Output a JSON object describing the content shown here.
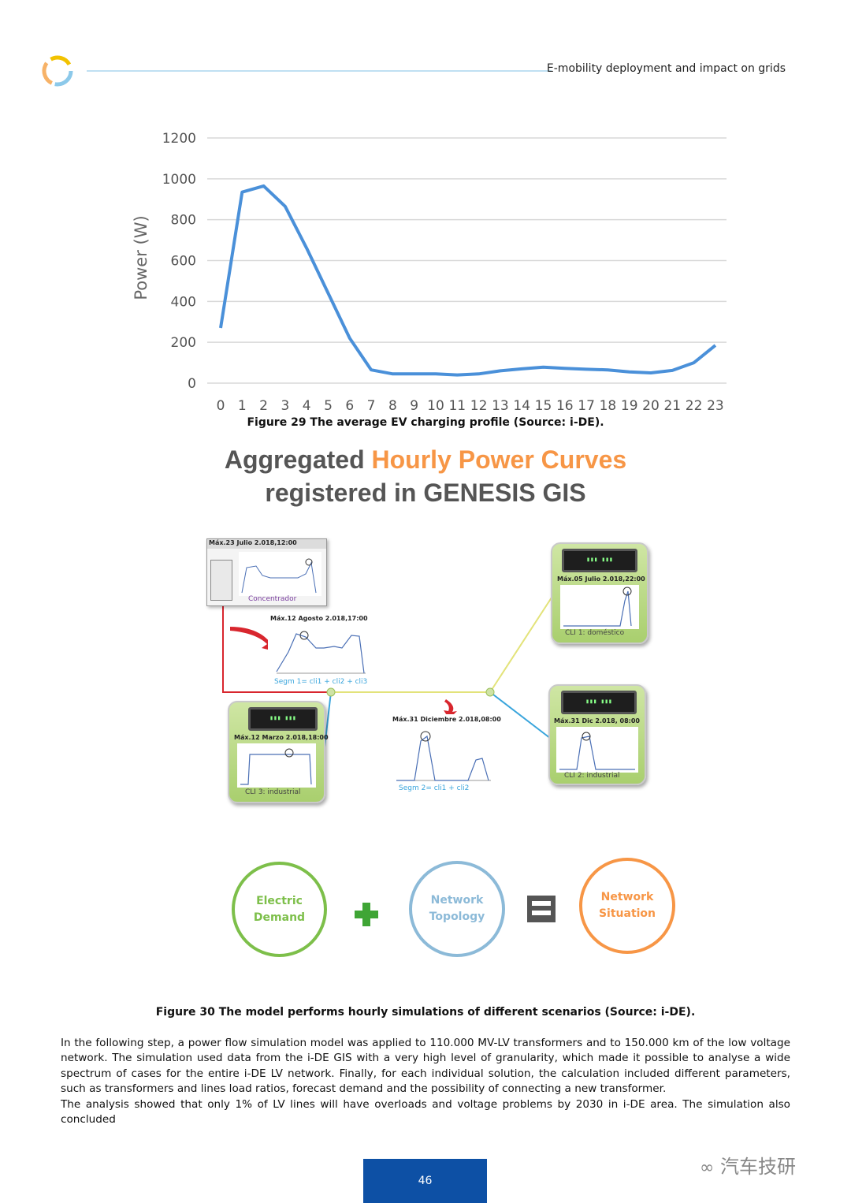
{
  "header": {
    "title": "E-mobility deployment and impact on grids"
  },
  "icons": {
    "logo": "ring-logo-icon",
    "plus": "plus-icon",
    "equals": "equals-icon",
    "watermark": "wechat-icon"
  },
  "chart_data": {
    "type": "line",
    "title": "",
    "xlabel": "",
    "ylabel": "Power (W)",
    "x": [
      0,
      1,
      2,
      3,
      4,
      5,
      6,
      7,
      8,
      9,
      10,
      11,
      12,
      13,
      14,
      15,
      16,
      17,
      18,
      19,
      20,
      21,
      22,
      23
    ],
    "series": [
      {
        "values": [
          270,
          935,
          965,
          865,
          660,
          440,
          220,
          65,
          45,
          45,
          45,
          40,
          45,
          60,
          70,
          78,
          72,
          68,
          65,
          55,
          50,
          62,
          100,
          185
        ],
        "color": "#4a90d9"
      }
    ],
    "ylim": [
      0,
      1200
    ],
    "yticks": [
      0,
      200,
      400,
      600,
      800,
      1000,
      1200
    ],
    "grid": true,
    "legend": "none"
  },
  "figure29": {
    "caption": "Figure 29 The average EV charging profile (Source: i-DE)."
  },
  "figure30": {
    "headline_part1": "Aggregated ",
    "headline_part2": "Hourly Power Curves",
    "headline_line2": "registered in GENESIS GIS",
    "concentrator": {
      "title": "Máx.23 Julio 2.018,12:00",
      "label": "Concentrador"
    },
    "segm1": {
      "title": "Máx.12 Agosto 2.018,17:00",
      "label": "Segm 1= cli1 + cli2 + cli3"
    },
    "segm2": {
      "title": "Máx.31 Diciembre 2.018,08:00",
      "label": "Segm 2= cli1 + cli2"
    },
    "cli1": {
      "title": "Máx.05 Julio 2.018,22:00",
      "label": "CLI 1: doméstico"
    },
    "cli2": {
      "title": "Máx.31 Dic 2.018, 08:00",
      "label": "CLI 2: industrial"
    },
    "cli3": {
      "title": "Máx.12 Marzo 2.018,18:00",
      "label": "CLI 3: industrial"
    },
    "circle1": {
      "line1": "Electric",
      "line2": "Demand",
      "color": "#7dbf4a"
    },
    "circle2": {
      "line1": "Network",
      "line2": "Topology",
      "color": "#8cbad8"
    },
    "circle3": {
      "line1": "Network",
      "line2": "Situation",
      "color": "#f79646"
    },
    "caption": "Figure 30 The model performs hourly simulations of different scenarios (Source: i-DE)."
  },
  "body": {
    "p1": "In the following step, a power flow simulation model was applied to 110.000 MV-LV transformers and to 150.000 km of the low voltage network. The simulation used data from the i-DE GIS with a very high level of granularity, which made it possible to analyse a wide spectrum of cases for the entire i-DE LV network. Finally, for each individual solution, the calculation included different parameters, such as transformers and lines load ratios, forecast demand and the possibility of connecting a new transformer.",
    "p2": "The analysis showed that only 1% of LV lines will have overloads and voltage problems by 2030 in i-DE area. The simulation also concluded"
  },
  "footer": {
    "page_number": "46",
    "watermark": "汽车技研"
  }
}
